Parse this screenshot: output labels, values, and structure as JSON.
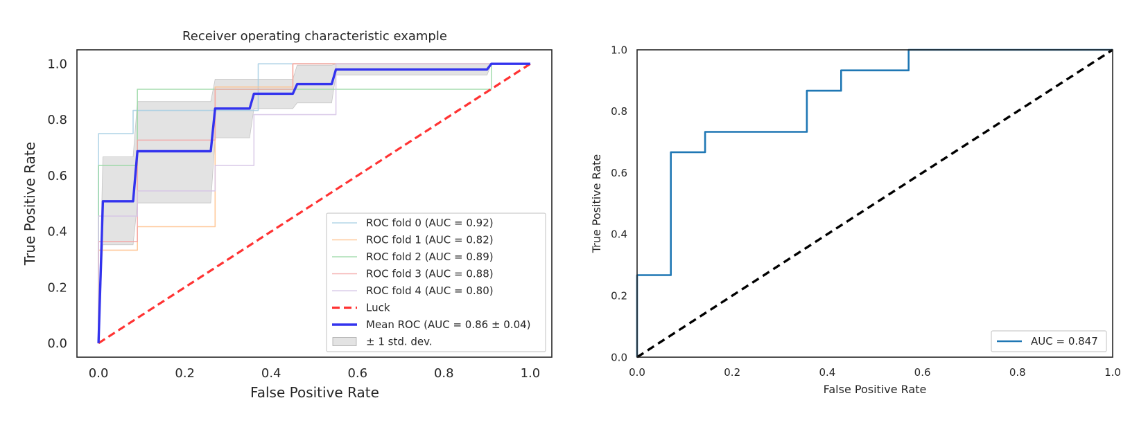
{
  "chart_data": [
    {
      "type": "line",
      "title": "Receiver operating characteristic example",
      "xlabel": "False Positive Rate",
      "ylabel": "True Positive Rate",
      "xlim": [
        -0.05,
        1.05
      ],
      "ylim": [
        -0.05,
        1.05
      ],
      "xticks": [
        0.0,
        0.2,
        0.4,
        0.6,
        0.8,
        1.0
      ],
      "xtick_labels": [
        "0.0",
        "0.2",
        "0.4",
        "0.6",
        "0.8",
        "1.0"
      ],
      "yticks": [
        0.0,
        0.2,
        0.4,
        0.6,
        0.8,
        1.0
      ],
      "ytick_labels": [
        "0.0",
        "0.2",
        "0.4",
        "0.6",
        "0.8",
        "1.0"
      ],
      "legend_position": "lower-right",
      "series": [
        {
          "name": "ROC fold 0 (AUC = 0.92)",
          "color": "#a6cee3",
          "style": "thin",
          "x": [
            0,
            0,
            0.08,
            0.08,
            0.37,
            0.37,
            1.0
          ],
          "y": [
            0,
            0.75,
            0.75,
            0.833,
            0.833,
            1.0,
            1.0
          ]
        },
        {
          "name": "ROC fold 1 (AUC = 0.82)",
          "color": "#ffc08a",
          "style": "thin",
          "x": [
            0,
            0,
            0.09,
            0.09,
            0.27,
            0.27,
            0.45,
            0.45,
            1.0
          ],
          "y": [
            0,
            0.333,
            0.333,
            0.417,
            0.417,
            0.917,
            0.917,
            1.0,
            1.0
          ]
        },
        {
          "name": "ROC fold 2 (AUC = 0.89)",
          "color": "#99d8a5",
          "style": "thin",
          "x": [
            0,
            0,
            0.09,
            0.09,
            0.91,
            0.91,
            1.0
          ],
          "y": [
            0,
            0.636,
            0.636,
            0.909,
            0.909,
            1.0,
            1.0
          ]
        },
        {
          "name": "ROC fold 3 (AUC = 0.88)",
          "color": "#f4a3a3",
          "style": "thin",
          "x": [
            0,
            0,
            0.09,
            0.09,
            0.27,
            0.27,
            0.45,
            0.45,
            1.0
          ],
          "y": [
            0,
            0.364,
            0.364,
            0.727,
            0.727,
            0.909,
            0.909,
            1.0,
            1.0
          ]
        },
        {
          "name": "ROC fold 4 (AUC = 0.80)",
          "color": "#d6c4e6",
          "style": "thin",
          "x": [
            0,
            0,
            0.09,
            0.09,
            0.27,
            0.27,
            0.36,
            0.36,
            0.55,
            0.55,
            1.0
          ],
          "y": [
            0,
            0.455,
            0.455,
            0.545,
            0.545,
            0.636,
            0.636,
            0.818,
            0.818,
            1.0,
            1.0
          ]
        },
        {
          "name": "Luck",
          "color": "#ff3333",
          "style": "dashed",
          "x": [
            0,
            1
          ],
          "y": [
            0,
            1
          ]
        },
        {
          "name": "Mean ROC (AUC = 0.86 ± 0.04)",
          "color": "#3333ee",
          "style": "thick",
          "x": [
            0,
            0.01,
            0.08,
            0.09,
            0.26,
            0.27,
            0.35,
            0.36,
            0.45,
            0.46,
            0.54,
            0.55,
            0.9,
            0.91,
            1.0
          ],
          "y": [
            0,
            0.508,
            0.508,
            0.687,
            0.687,
            0.84,
            0.84,
            0.893,
            0.893,
            0.927,
            0.927,
            0.98,
            0.98,
            1.0,
            1.0
          ]
        }
      ],
      "band": {
        "name": "± 1 std. dev.",
        "color": "#cccccc",
        "x": [
          0,
          0.01,
          0.08,
          0.09,
          0.26,
          0.27,
          0.35,
          0.36,
          0.45,
          0.46,
          0.54,
          0.55,
          0.9,
          0.91,
          1.0
        ],
        "upper": [
          0,
          0.667,
          0.667,
          0.865,
          0.865,
          0.945,
          0.945,
          0.945,
          0.945,
          0.995,
          0.995,
          1.0,
          1.0,
          1.0,
          1.0
        ],
        "lower": [
          0,
          0.352,
          0.352,
          0.502,
          0.502,
          0.735,
          0.735,
          0.84,
          0.84,
          0.86,
          0.86,
          0.96,
          0.96,
          1.0,
          1.0
        ]
      }
    },
    {
      "type": "line",
      "title": "",
      "xlabel": "False Positive Rate",
      "ylabel": "True Positive Rate",
      "xlim": [
        0.0,
        1.0
      ],
      "ylim": [
        0.0,
        1.0
      ],
      "xticks": [
        0.0,
        0.2,
        0.4,
        0.6,
        0.8,
        1.0
      ],
      "xtick_labels": [
        "0.0",
        "0.2",
        "0.4",
        "0.6",
        "0.8",
        "1.0"
      ],
      "yticks": [
        0.0,
        0.2,
        0.4,
        0.6,
        0.8,
        1.0
      ],
      "ytick_labels": [
        "0.0",
        "0.2",
        "0.4",
        "0.6",
        "0.8",
        "1.0"
      ],
      "legend_position": "lower-right",
      "series": [
        {
          "name": "AUC = 0.847",
          "color": "#1f77b4",
          "style": "normal",
          "x": [
            0,
            0,
            0.071,
            0.071,
            0.143,
            0.143,
            0.357,
            0.357,
            0.429,
            0.429,
            0.571,
            0.571,
            1.0
          ],
          "y": [
            0,
            0.267,
            0.267,
            0.667,
            0.667,
            0.733,
            0.733,
            0.867,
            0.867,
            0.933,
            0.933,
            1.0,
            1.0
          ]
        },
        {
          "name": "",
          "color": "#000000",
          "style": "dashed-black",
          "x": [
            0,
            1
          ],
          "y": [
            0,
            1
          ]
        }
      ]
    }
  ]
}
